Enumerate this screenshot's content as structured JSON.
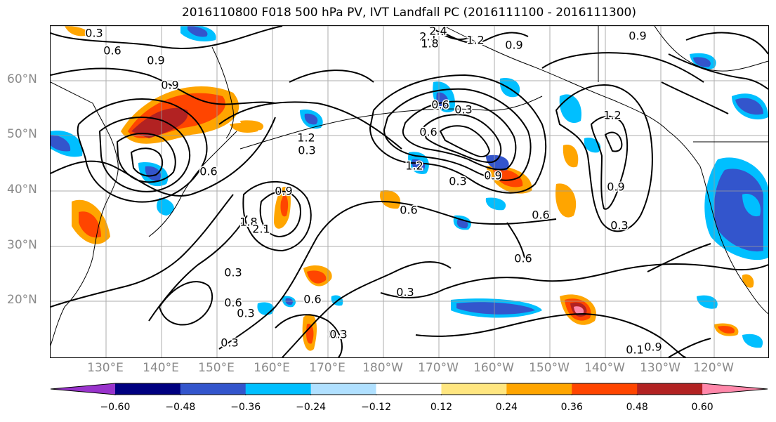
{
  "title": "2016110800 F018 500 hPa PV, IVT Landfall PC (2016111100 - 2016111300)",
  "map": {
    "lat_labels": [
      "60°N",
      "50°N",
      "40°N",
      "30°N",
      "20°N"
    ],
    "lon_labels": [
      "130°E",
      "140°E",
      "150°E",
      "160°E",
      "170°E",
      "180°W",
      "170°W",
      "160°W",
      "150°W",
      "140°W",
      "130°W",
      "120°W"
    ],
    "contour_labels": [
      "0.3",
      "0.6",
      "0.9",
      "0.9",
      "2.1",
      "2.4",
      "1.8",
      "1.2",
      "0.9",
      "0.9",
      "0.6",
      "0.3",
      "0.3",
      "0.6",
      "1.2",
      "0.9",
      "1.8",
      "2.1",
      "0.6",
      "1.2",
      "0.3",
      "0.6",
      "0.6",
      "0.9",
      "1.2",
      "0.6",
      "0.3",
      "0.6",
      "0.9",
      "0.3",
      "0.3",
      "0.6",
      "0.3",
      "0.3",
      "0.3",
      "0.3",
      "0.1",
      "0.9"
    ]
  },
  "colorbar": {
    "ticks": [
      "−0.60",
      "−0.48",
      "−0.36",
      "−0.24",
      "−0.12",
      "0.12",
      "0.24",
      "0.36",
      "0.48",
      "0.60"
    ],
    "colors": [
      "#9933cc",
      "#000080",
      "#3355cc",
      "#00bfff",
      "#b0e0ff",
      "#ffffff",
      "#ffe680",
      "#ffa500",
      "#ff4500",
      "#b22222",
      "#ff88aa"
    ]
  }
}
